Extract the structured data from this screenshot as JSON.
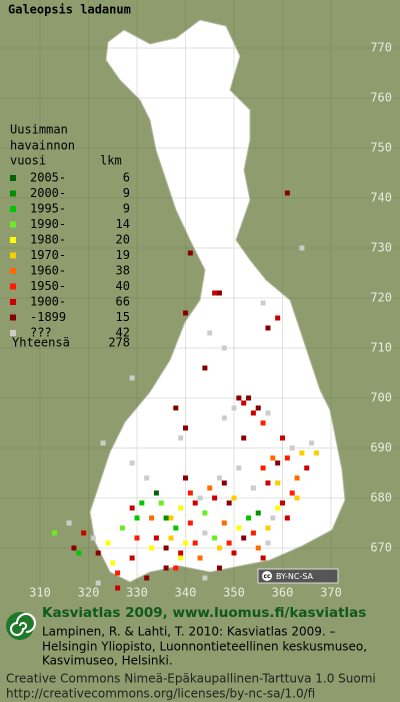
{
  "title": "Galeopsis ladanum",
  "legend": {
    "heading": [
      "Uusimman",
      "havainnon",
      "vuosi"
    ],
    "count_heading": "lkm",
    "entries": [
      {
        "label": "2005-",
        "count": 6,
        "color": "#006400"
      },
      {
        "label": "2000-",
        "count": 9,
        "color": "#009000"
      },
      {
        "label": "1995-",
        "count": 9,
        "color": "#00c800"
      },
      {
        "label": "1990-",
        "count": 14,
        "color": "#66ee22"
      },
      {
        "label": "1980-",
        "count": 20,
        "color": "#ffff00"
      },
      {
        "label": "1970-",
        "count": 19,
        "color": "#ffcc00"
      },
      {
        "label": "1960-",
        "count": 38,
        "color": "#ff6a00"
      },
      {
        "label": "1950-",
        "count": 40,
        "color": "#ff1a00"
      },
      {
        "label": "1900-",
        "count": 66,
        "color": "#cc0000"
      },
      {
        "label": "-1899",
        "count": 15,
        "color": "#880000"
      },
      {
        "label": "???",
        "count": 42,
        "color": "#cccccc"
      }
    ],
    "total_label": "Yhteensä",
    "total": 278
  },
  "map": {
    "xticks": [
      310,
      320,
      330,
      340,
      350,
      360,
      370
    ],
    "yticks": [
      770,
      760,
      750,
      740,
      730,
      720,
      710,
      700,
      690,
      680,
      670
    ],
    "observations": [
      [
        361,
        741,
        9
      ],
      [
        364,
        730,
        10
      ],
      [
        341,
        729,
        9
      ],
      [
        346,
        721,
        8
      ],
      [
        347,
        721,
        9
      ],
      [
        356,
        719,
        10
      ],
      [
        340,
        717,
        9
      ],
      [
        359,
        716,
        8
      ],
      [
        357,
        714,
        9
      ],
      [
        345,
        713,
        10
      ],
      [
        348,
        710,
        10
      ],
      [
        329,
        704,
        10
      ],
      [
        344,
        706,
        9
      ],
      [
        351,
        700,
        9
      ],
      [
        352,
        699,
        8
      ],
      [
        353,
        700,
        9
      ],
      [
        350,
        698,
        10
      ],
      [
        355,
        698,
        9
      ],
      [
        354,
        697,
        8
      ],
      [
        357,
        697,
        10
      ],
      [
        348,
        696,
        10
      ],
      [
        356,
        695,
        7
      ],
      [
        338,
        698,
        9
      ],
      [
        340,
        694,
        9
      ],
      [
        352,
        692,
        9
      ],
      [
        339,
        692,
        10
      ],
      [
        323,
        691,
        10
      ],
      [
        360,
        692,
        8
      ],
      [
        362,
        690,
        10
      ],
      [
        364,
        689,
        5
      ],
      [
        361,
        688,
        7
      ],
      [
        358,
        688,
        6
      ],
      [
        359,
        687,
        9
      ],
      [
        356,
        686,
        7
      ],
      [
        357,
        683,
        8
      ],
      [
        354,
        682,
        10
      ],
      [
        359,
        683,
        5
      ],
      [
        362,
        681,
        7
      ],
      [
        363,
        684,
        6
      ],
      [
        365,
        686,
        8
      ],
      [
        367,
        689,
        5
      ],
      [
        366,
        691,
        10
      ],
      [
        329,
        687,
        10
      ],
      [
        332,
        684,
        10
      ],
      [
        331,
        679,
        2
      ],
      [
        334,
        681,
        0
      ],
      [
        335,
        679,
        3
      ],
      [
        340,
        684,
        9
      ],
      [
        341,
        681,
        7
      ],
      [
        342,
        679,
        8
      ],
      [
        343,
        680,
        10
      ],
      [
        339,
        678,
        4
      ],
      [
        337,
        676,
        5
      ],
      [
        345,
        682,
        6
      ],
      [
        346,
        680,
        8
      ],
      [
        347,
        684,
        10
      ],
      [
        348,
        683,
        9
      ],
      [
        349,
        679,
        9
      ],
      [
        351,
        686,
        10
      ],
      [
        350,
        680,
        5
      ],
      [
        344,
        677,
        3
      ],
      [
        341,
        675,
        7
      ],
      [
        338,
        674,
        2
      ],
      [
        336,
        676,
        1
      ],
      [
        333,
        676,
        6
      ],
      [
        330,
        676,
        2
      ],
      [
        329,
        678,
        8
      ],
      [
        327,
        674,
        3
      ],
      [
        324,
        671,
        4
      ],
      [
        321,
        672,
        10
      ],
      [
        319,
        673,
        8
      ],
      [
        317,
        670,
        9
      ],
      [
        316,
        675,
        10
      ],
      [
        313,
        673,
        3
      ],
      [
        318,
        669,
        2
      ],
      [
        322,
        669,
        9
      ],
      [
        325,
        667,
        4
      ],
      [
        329,
        668,
        8
      ],
      [
        330,
        672,
        7
      ],
      [
        333,
        670,
        4
      ],
      [
        334,
        672,
        8
      ],
      [
        336,
        670,
        9
      ],
      [
        337,
        672,
        5
      ],
      [
        339,
        669,
        8
      ],
      [
        340,
        671,
        4
      ],
      [
        342,
        671,
        7
      ],
      [
        343,
        668,
        6
      ],
      [
        344,
        673,
        10
      ],
      [
        346,
        672,
        3
      ],
      [
        347,
        670,
        5
      ],
      [
        349,
        671,
        7
      ],
      [
        350,
        669,
        8
      ],
      [
        351,
        674,
        4
      ],
      [
        352,
        672,
        9
      ],
      [
        353,
        676,
        2
      ],
      [
        354,
        673,
        7
      ],
      [
        355,
        670,
        6
      ],
      [
        356,
        668,
        8
      ],
      [
        357,
        674,
        5
      ],
      [
        358,
        676,
        10
      ],
      [
        359,
        678,
        4
      ],
      [
        360,
        679,
        8
      ],
      [
        355,
        677,
        1
      ],
      [
        348,
        675,
        6
      ],
      [
        338,
        666,
        7
      ],
      [
        336,
        666,
        9
      ],
      [
        339,
        668,
        4
      ],
      [
        332,
        664,
        9
      ],
      [
        326,
        662,
        8
      ],
      [
        326,
        665,
        7
      ],
      [
        322,
        663,
        10
      ],
      [
        344,
        664,
        10
      ],
      [
        347,
        666,
        9
      ],
      [
        357,
        671,
        10
      ],
      [
        361,
        676,
        8
      ],
      [
        363,
        680,
        5
      ]
    ]
  },
  "badge": [
    "cc",
    "BY-NC-SA"
  ],
  "footer": {
    "heading": "Kasviatlas 2009, www.luomus.fi/kasviatlas",
    "citation": [
      "Lampinen, R. & Lahti, T. 2010: Kasviatlas 2009. –",
      "Helsingin Yliopisto, Luonnontieteellinen keskusmuseo,",
      "Kasvimuseo, Helsinki."
    ],
    "license": [
      "Creative Commons Nimeä-Epäkaupallinen-Tarttuva 1.0 Suomi",
      "http://creativecommons.org/licenses/by-nc-sa/1.0/fi"
    ]
  }
}
